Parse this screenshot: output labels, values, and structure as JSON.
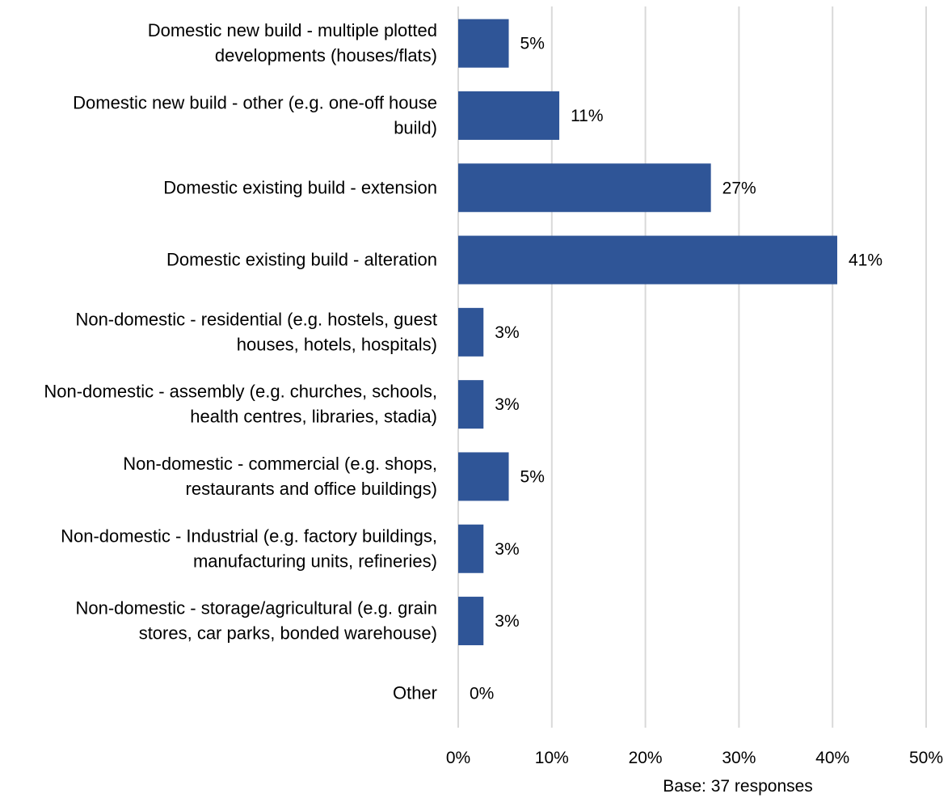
{
  "chart_data": {
    "type": "bar",
    "orientation": "horizontal",
    "categories": [
      [
        "Domestic new build - multiple plotted",
        "developments (houses/flats)"
      ],
      [
        "Domestic new build - other (e.g. one-off house",
        "build)"
      ],
      [
        "Domestic existing build - extension"
      ],
      [
        "Domestic existing build - alteration"
      ],
      [
        "Non-domestic - residential (e.g. hostels, guest",
        "houses, hotels, hospitals)"
      ],
      [
        "Non-domestic - assembly (e.g. churches, schools,",
        "health centres, libraries, stadia)"
      ],
      [
        "Non-domestic - commercial (e.g. shops,",
        "restaurants and office buildings)"
      ],
      [
        "Non-domestic - Industrial (e.g. factory buildings,",
        "manufacturing units, refineries)"
      ],
      [
        "Non-domestic - storage/agricultural (e.g. grain",
        "stores, car parks, bonded warehouse)"
      ],
      [
        "Other"
      ]
    ],
    "values": [
      5.4,
      10.8,
      27.0,
      40.5,
      2.7,
      2.7,
      5.4,
      2.7,
      2.7,
      0
    ],
    "data_labels": [
      "5%",
      "11%",
      "27%",
      "41%",
      "3%",
      "3%",
      "5%",
      "3%",
      "3%",
      "0%"
    ],
    "xlim": [
      0,
      50
    ],
    "ticks": [
      0,
      10,
      20,
      30,
      40,
      50
    ],
    "tick_labels": [
      "0%",
      "10%",
      "20%",
      "30%",
      "40%",
      "50%"
    ],
    "grid": true,
    "bar_color": "#2f5597",
    "note": "Base: 37 responses"
  }
}
